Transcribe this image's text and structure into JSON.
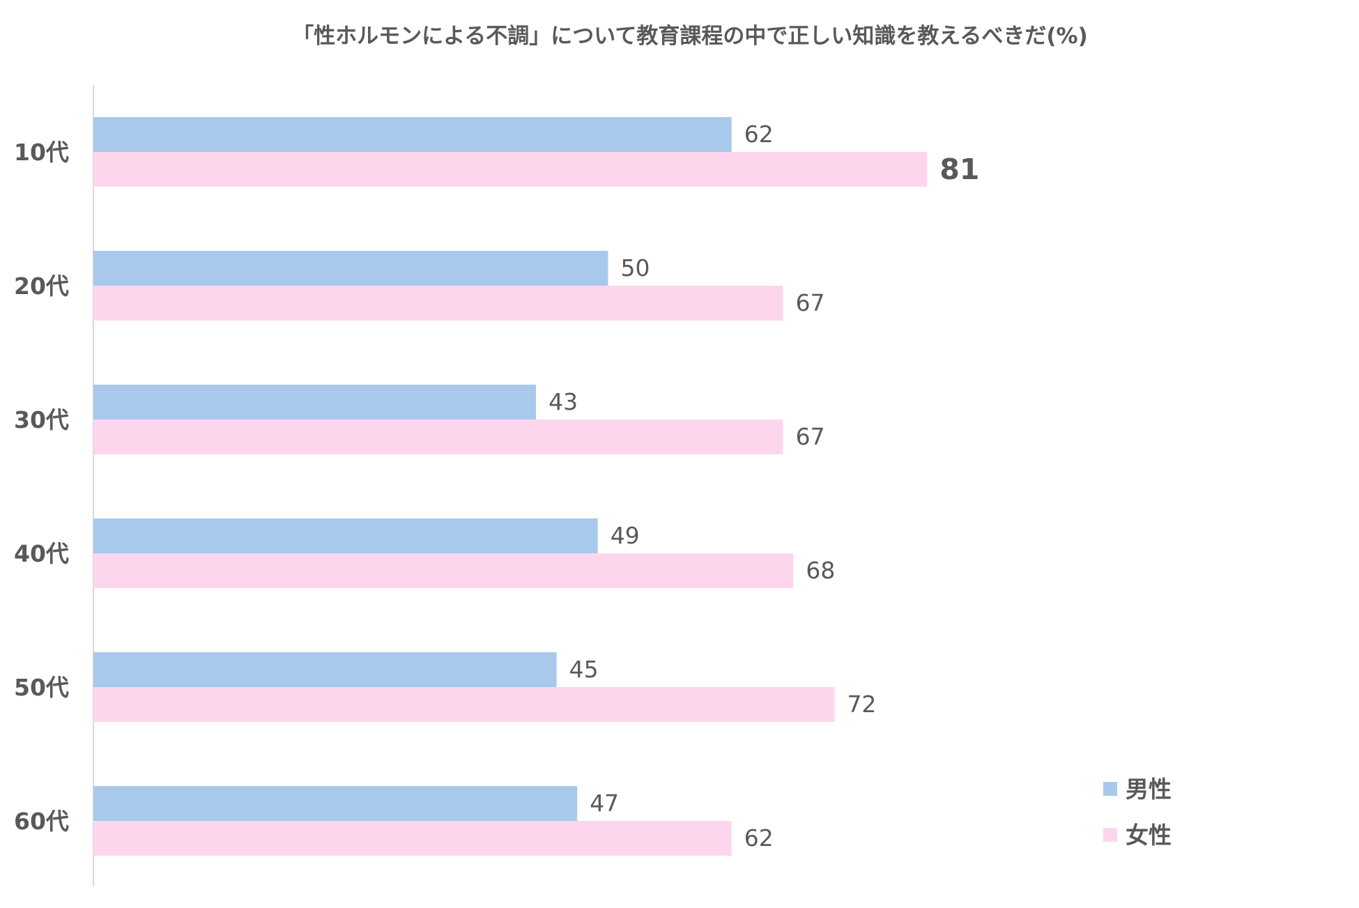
{
  "chart_data": {
    "type": "bar",
    "orientation": "horizontal",
    "title": "「性ホルモンによる不調」について教育課程の中で正しい知識を教えるべきだ(%)",
    "categories": [
      "10代",
      "20代",
      "30代",
      "40代",
      "50代",
      "60代"
    ],
    "series": [
      {
        "name": "男性",
        "color": "#a8c9eb",
        "values": [
          62,
          50,
          43,
          49,
          45,
          47
        ]
      },
      {
        "name": "女性",
        "color": "#fdd6ee",
        "values": [
          81,
          67,
          67,
          68,
          72,
          62
        ]
      }
    ],
    "xlim": [
      0,
      100
    ],
    "grid": false,
    "legend_position": "bottom-right",
    "highlight": {
      "series": "女性",
      "category": "10代",
      "value": 81,
      "color": "#c00000"
    },
    "axis_color": "#d9d9d9",
    "text_color": "#595959"
  }
}
